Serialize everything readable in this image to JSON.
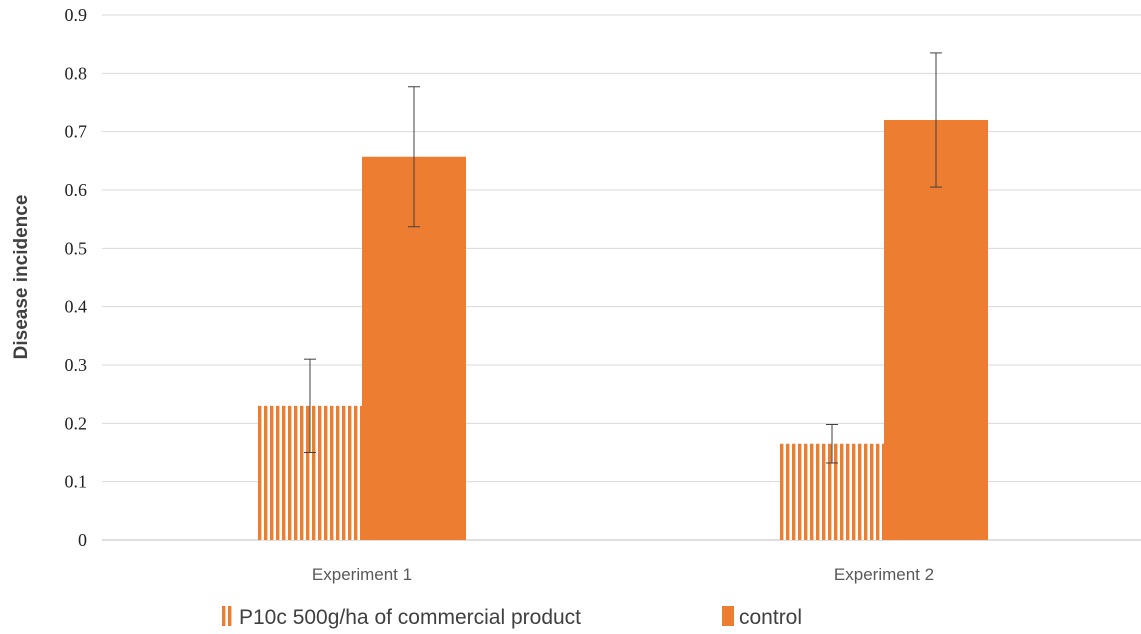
{
  "chart_data": {
    "type": "bar",
    "title": "",
    "xlabel": "",
    "ylabel": "Disease incidence",
    "ylim": [
      0,
      0.9
    ],
    "yticks": [
      0,
      0.1,
      0.2,
      0.3,
      0.4,
      0.5,
      0.6,
      0.7,
      0.8,
      0.9
    ],
    "categories": [
      "Experiment 1",
      "Experiment 2"
    ],
    "series": [
      {
        "name": "P10c 500g/ha of commercial product",
        "values": [
          0.23,
          0.165
        ],
        "error": [
          0.08,
          0.033
        ],
        "color": "#ED7D31",
        "pattern": "vertical-stripes"
      },
      {
        "name": "control",
        "values": [
          0.657,
          0.72
        ],
        "error": [
          0.12,
          0.115
        ],
        "color": "#ED7D31",
        "pattern": "solid"
      }
    ],
    "grid": true,
    "legend": "bottom"
  }
}
